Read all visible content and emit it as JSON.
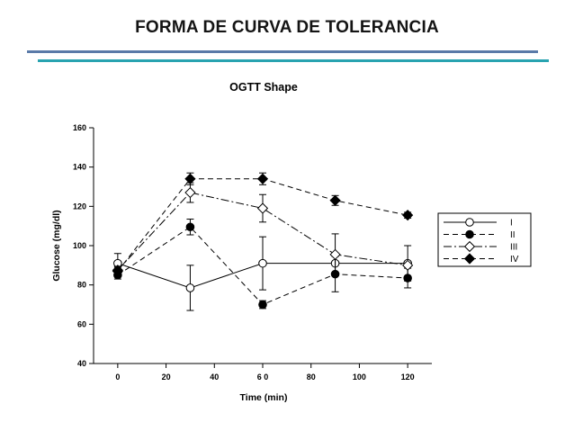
{
  "slide": {
    "title": "FORMA DE CURVA DE TOLERANCIA"
  },
  "chart_data": {
    "type": "line",
    "title": "OGTT Shape",
    "xlabel": "Time (min)",
    "ylabel": "Glucose (mg/dl)",
    "x": [
      0,
      30,
      60,
      90,
      120
    ],
    "xlim": [
      -10,
      130
    ],
    "ylim": [
      40,
      160
    ],
    "xticks": [
      0,
      20,
      40,
      60,
      80,
      100,
      120
    ],
    "xtick_labels": [
      "0",
      "20",
      "40",
      "6 0",
      "80",
      "100",
      "120"
    ],
    "yticks": [
      40,
      60,
      80,
      100,
      120,
      140,
      160
    ],
    "ytick_labels": [
      "40",
      "60",
      "80",
      "100",
      "120",
      "140",
      "160"
    ],
    "grid": false,
    "legend_position": "right",
    "series": [
      {
        "name": "I",
        "marker": "circle-open",
        "line": "solid",
        "color": "#000000",
        "values": [
          91,
          78.5,
          91,
          91,
          91
        ],
        "errors": [
          5,
          11.5,
          13.5,
          0,
          9
        ]
      },
      {
        "name": "II",
        "marker": "circle-filled",
        "line": "dashed",
        "color": "#000000",
        "values": [
          85,
          109.5,
          70,
          85.5,
          83.5
        ],
        "errors": [
          2,
          4,
          2,
          9,
          5
        ]
      },
      {
        "name": "III",
        "marker": "diamond-open",
        "line": "dash-dot",
        "color": "#000000",
        "values": [
          87.5,
          127,
          119,
          95.5,
          90
        ],
        "errors": [
          2,
          5,
          7,
          10.5,
          0
        ]
      },
      {
        "name": "IV",
        "marker": "diamond-filled",
        "line": "dashed",
        "color": "#000000",
        "values": [
          87,
          134,
          134,
          123,
          115.5
        ],
        "errors": [
          2,
          3,
          3,
          2.5,
          1.5
        ]
      }
    ]
  }
}
